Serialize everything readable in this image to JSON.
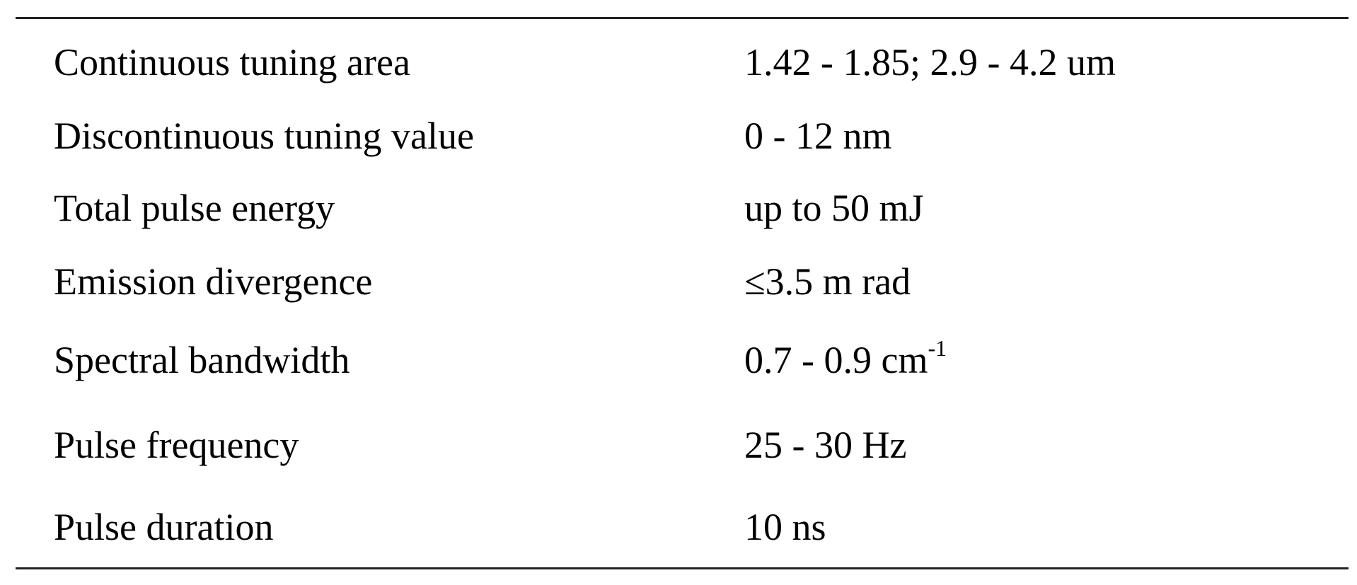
{
  "table": {
    "rows": [
      {
        "parameter": "Continuous tuning area",
        "value": "1.42 - 1.85; 2.9 - 4.2 um"
      },
      {
        "parameter": "Discontinuous tuning value",
        "value": "0 - 12 nm"
      },
      {
        "parameter": "Total pulse energy",
        "value": "up to 50 mJ"
      },
      {
        "parameter": "Emission divergence",
        "value": "≤3.5 m rad"
      },
      {
        "parameter": "Spectral bandwidth",
        "value": "0.7 - 0.9 cm",
        "value_sup": "-1"
      },
      {
        "parameter": "Pulse frequency",
        "value": "25 - 30 Hz"
      },
      {
        "parameter": "Pulse duration",
        "value": "10 ns"
      }
    ]
  }
}
